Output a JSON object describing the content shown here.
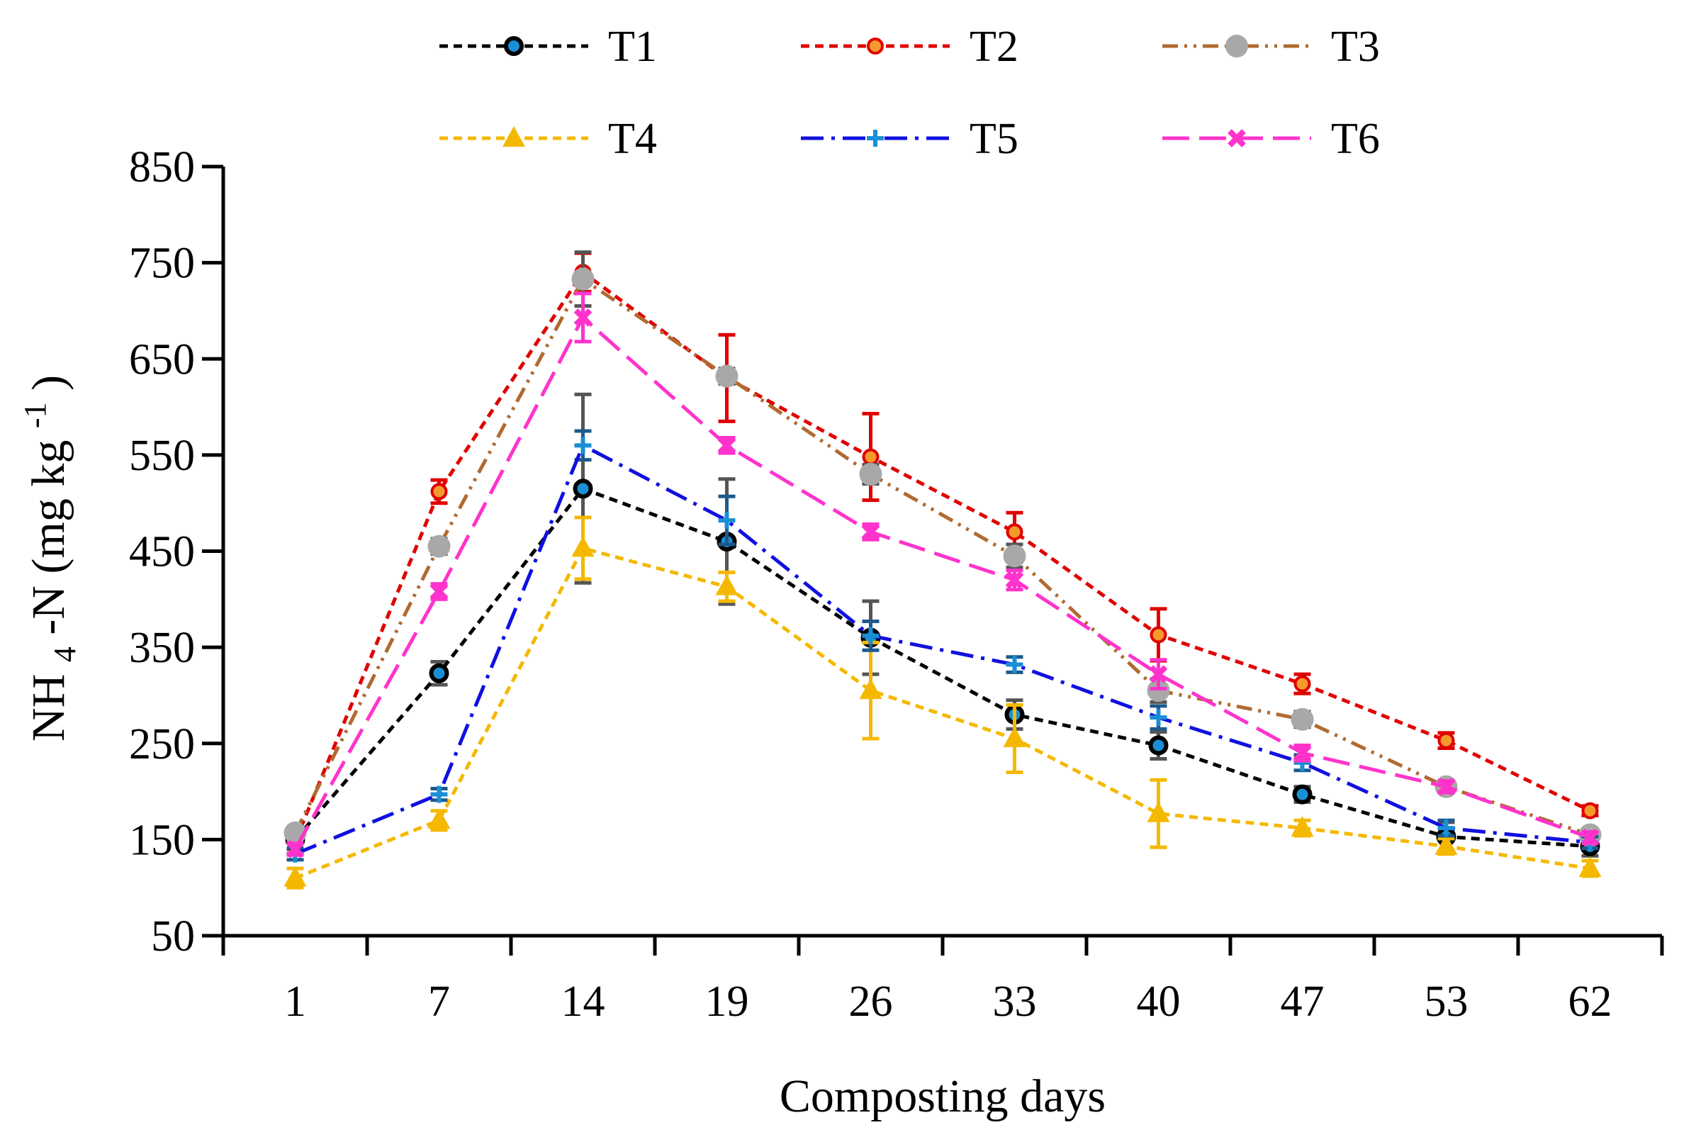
{
  "chart_data": {
    "type": "line",
    "title": "",
    "xlabel": "Composting days",
    "ylabel": {
      "base": "NH",
      "sub": "4",
      "mid": "-N (mg kg",
      "sup": "-1",
      "end": ")"
    },
    "categories": [
      "1",
      "7",
      "14",
      "19",
      "26",
      "33",
      "40",
      "47",
      "53",
      "62"
    ],
    "ylim": [
      50,
      850
    ],
    "yticks": [
      50,
      150,
      250,
      350,
      450,
      550,
      650,
      750,
      850
    ],
    "legend_position": "top",
    "series": [
      {
        "name": "T1",
        "color": "#000000",
        "dash": "short-dash",
        "marker": "circle-blue",
        "values": [
          150,
          323,
          515,
          460,
          360,
          280,
          248,
          197,
          153,
          143
        ],
        "errors": [
          10,
          12,
          98,
          65,
          38,
          15,
          14,
          8,
          15,
          10
        ]
      },
      {
        "name": "T2",
        "color": "#e00000",
        "dash": "short-dash",
        "marker": "circle-orange",
        "values": [
          148,
          512,
          740,
          630,
          548,
          470,
          363,
          312,
          253,
          180
        ],
        "errors": [
          8,
          12,
          20,
          45,
          45,
          20,
          27,
          10,
          8,
          5
        ]
      },
      {
        "name": "T3",
        "color": "#b06a30",
        "dash": "dash-dot-dot",
        "marker": "circle-gray",
        "values": [
          157,
          455,
          733,
          632,
          530,
          445,
          305,
          275,
          205,
          155
        ],
        "errors": [
          6,
          8,
          28,
          8,
          10,
          12,
          12,
          8,
          6,
          6
        ]
      },
      {
        "name": "T4",
        "color": "#f5b800",
        "dash": "short-dash",
        "marker": "triangle",
        "values": [
          110,
          170,
          453,
          413,
          305,
          255,
          177,
          162,
          143,
          120
        ],
        "errors": [
          10,
          10,
          32,
          15,
          50,
          35,
          35,
          8,
          8,
          8
        ]
      },
      {
        "name": "T5",
        "color": "#1010e0",
        "dash": "long-dash-dot",
        "marker": "plus",
        "values": [
          135,
          197,
          560,
          482,
          362,
          332,
          277,
          230,
          162,
          147
        ],
        "errors": [
          6,
          6,
          15,
          25,
          15,
          8,
          12,
          8,
          8,
          6
        ]
      },
      {
        "name": "T6",
        "color": "#ff33cc",
        "dash": "long-dash",
        "marker": "x",
        "values": [
          140,
          408,
          693,
          560,
          470,
          420,
          322,
          240,
          205,
          152
        ],
        "errors": [
          6,
          8,
          25,
          8,
          8,
          10,
          15,
          8,
          6,
          6
        ]
      }
    ]
  }
}
